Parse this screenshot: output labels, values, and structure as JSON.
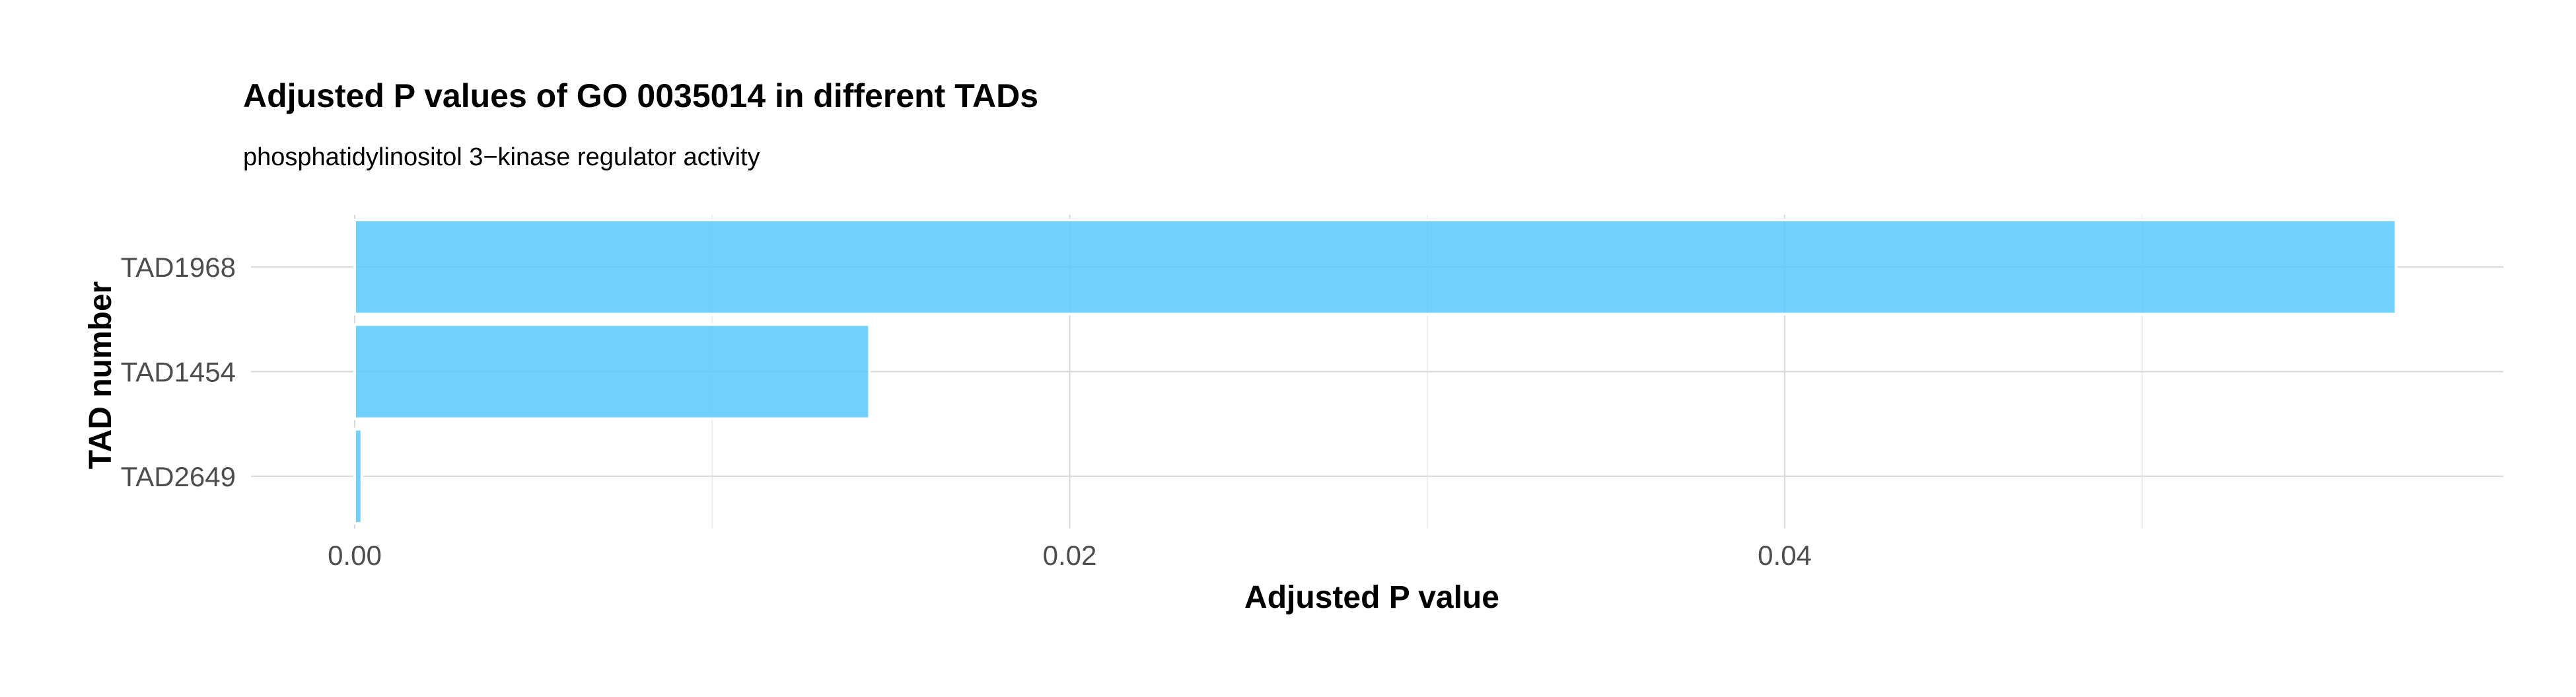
{
  "chart_data": {
    "type": "bar",
    "orientation": "horizontal",
    "title": "Adjusted P values of GO 0035014 in different TADs",
    "subtitle": "phosphatidylinositol 3−kinase regulator activity",
    "xlabel": "Adjusted P value",
    "ylabel": "TAD number",
    "categories": [
      "TAD1968",
      "TAD1454",
      "TAD2649"
    ],
    "values": [
      0.0571,
      0.0144,
      0.0002
    ],
    "xlim": [
      -0.0029,
      0.0601
    ],
    "x_ticks": [
      0.0,
      0.02,
      0.04
    ],
    "x_tick_labels": [
      "0.00",
      "0.02",
      "0.04"
    ],
    "x_minor_ticks": [
      0.01,
      0.03,
      0.05
    ],
    "bar_color": "#5bc8fb",
    "bar_border_color": "#ffffff",
    "grid": true,
    "legend": "none"
  }
}
